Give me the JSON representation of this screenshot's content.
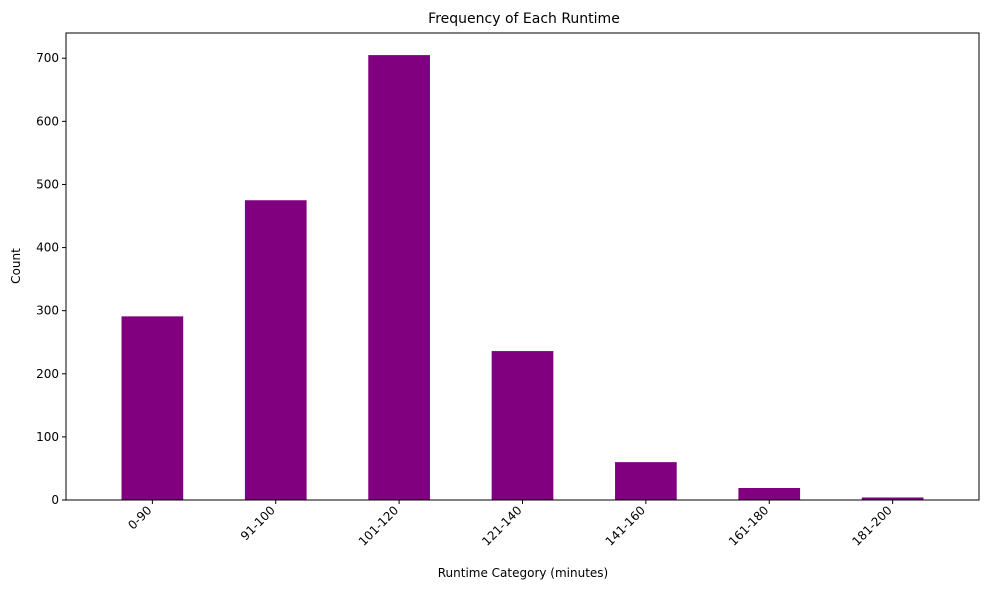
{
  "chart_data": {
    "type": "bar",
    "title": "Frequency of Each Runtime",
    "xlabel": "Runtime Category (minutes)",
    "ylabel": "Count",
    "categories": [
      "0-90",
      "91-100",
      "101-120",
      "121-140",
      "141-160",
      "161-180",
      "181-200"
    ],
    "values": [
      291,
      475,
      705,
      236,
      60,
      19,
      4
    ],
    "yticks": [
      0,
      100,
      200,
      300,
      400,
      500,
      600,
      700
    ],
    "ylim": [
      0,
      740
    ],
    "bar_color": "#800080",
    "grid": false,
    "legend": "none"
  }
}
